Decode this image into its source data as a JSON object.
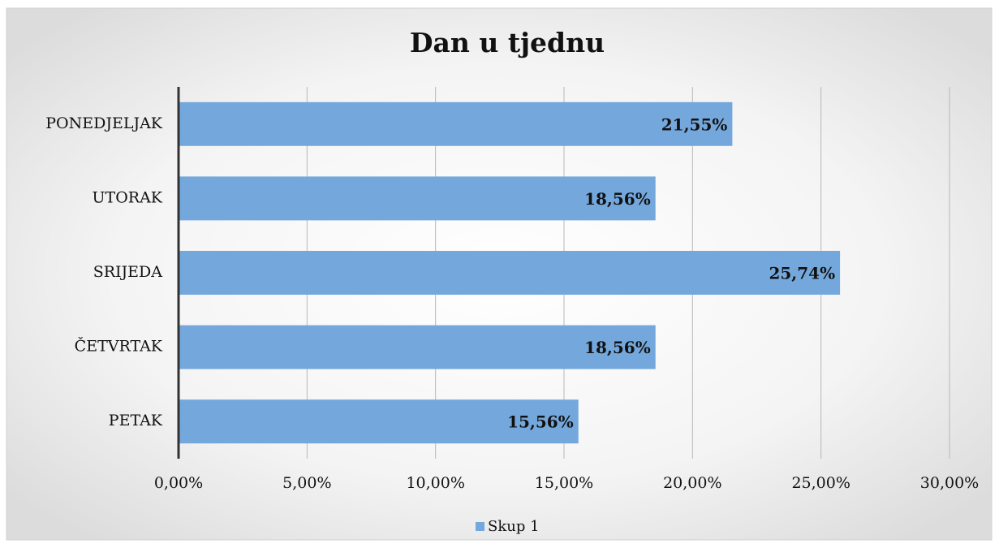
{
  "chart_data": {
    "type": "bar",
    "orientation": "horizontal",
    "title": "Dan u tjednu",
    "categories": [
      "PONEDJELJAK",
      "UTORAK",
      "SRIJEDA",
      "ČETVRTAK",
      "PETAK"
    ],
    "series": [
      {
        "name": "Skup 1",
        "color": "#74a8dc",
        "values": [
          21.55,
          18.56,
          25.74,
          18.56,
          15.56
        ],
        "value_labels": [
          "21,55%",
          "18,56%",
          "25,74%",
          "18,56%",
          "15,56%"
        ]
      }
    ],
    "xlim": [
      0,
      30
    ],
    "xticks": [
      {
        "value": 0,
        "label": "0,00%"
      },
      {
        "value": 5,
        "label": "5,00%"
      },
      {
        "value": 10,
        "label": "10,00%"
      },
      {
        "value": 15,
        "label": "15,00%"
      },
      {
        "value": 20,
        "label": "20,00%"
      },
      {
        "value": 25,
        "label": "25,00%"
      },
      {
        "value": 30,
        "label": "30,00%"
      }
    ],
    "grid": true,
    "legend": "bottom"
  }
}
